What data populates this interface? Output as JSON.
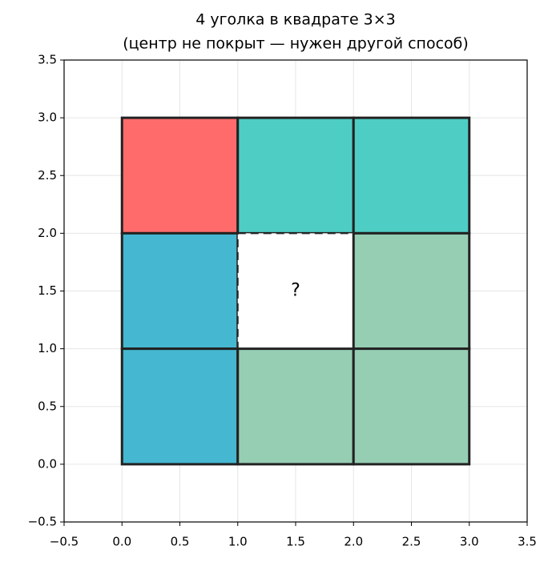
{
  "chart_data": {
    "type": "tiles",
    "title": "4 уголка в квадрате 3×3",
    "subtitle": "(центр не покрыт — нужен другой способ)",
    "xlim": [
      -0.5,
      3.5
    ],
    "ylim": [
      -0.5,
      3.5
    ],
    "xticks": [
      {
        "value": -0.5,
        "label": "−0.5"
      },
      {
        "value": 0,
        "label": "0.0"
      },
      0.5,
      {
        "value": 1,
        "label": "1.0"
      },
      1.5,
      {
        "value": 2,
        "label": "2.0"
      },
      2.5,
      {
        "value": 3,
        "label": "3.0"
      },
      3.5
    ],
    "yticks": [
      {
        "value": -0.5,
        "label": "−0.5"
      },
      {
        "value": 0,
        "label": "0.0"
      },
      0.5,
      {
        "value": 1,
        "label": "1.0"
      },
      1.5,
      {
        "value": 2,
        "label": "2.0"
      },
      2.5,
      {
        "value": 3,
        "label": "3.0"
      },
      3.5
    ],
    "grid": true,
    "cell_size": 1,
    "cells": [
      {
        "x": 0,
        "y": 2,
        "color": "#ff6b6b"
      },
      {
        "x": 1,
        "y": 2,
        "color": "#4ecdc4"
      },
      {
        "x": 2,
        "y": 2,
        "color": "#4ecdc4"
      },
      {
        "x": 0,
        "y": 1,
        "color": "#45b7d1"
      },
      {
        "x": 1,
        "y": 1,
        "color": "#ffffff",
        "dashed": true
      },
      {
        "x": 2,
        "y": 1,
        "color": "#96ceb4"
      },
      {
        "x": 0,
        "y": 0,
        "color": "#45b7d1"
      },
      {
        "x": 1,
        "y": 0,
        "color": "#96ceb4"
      },
      {
        "x": 2,
        "y": 0,
        "color": "#96ceb4"
      }
    ],
    "annotations": [
      {
        "text": "?",
        "x": 1.5,
        "y": 1.5
      }
    ]
  }
}
